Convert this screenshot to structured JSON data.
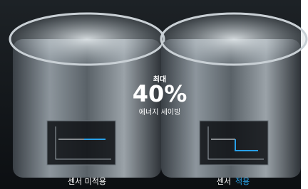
{
  "headline": {
    "prefix": "최대",
    "value": "40%",
    "caption": "에너지 세이빙"
  },
  "panels": [
    {
      "label": "센서 미적용"
    },
    {
      "label": "센서",
      "highlight": "적용"
    }
  ]
}
